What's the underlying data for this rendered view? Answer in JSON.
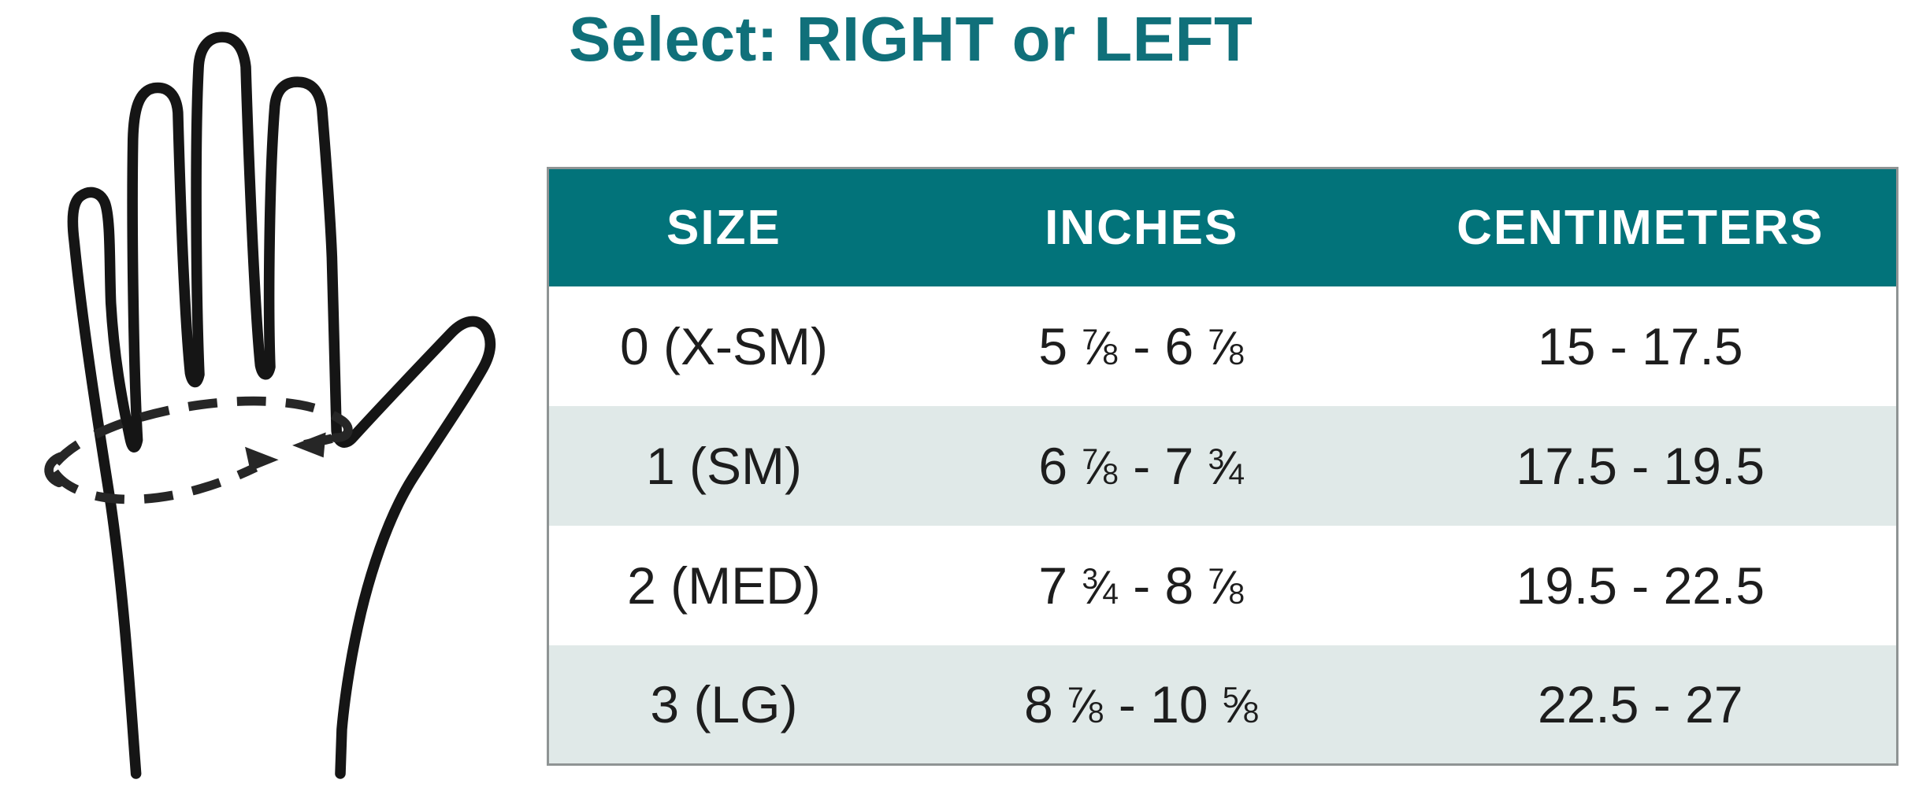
{
  "title": "Select: RIGHT or LEFT",
  "illustration": {
    "label": "hand-measurement-diagram",
    "description": "Black outline drawing of an open hand with a dashed measuring loop around the palm and two arrowheads indicating circumference"
  },
  "chart_data": {
    "type": "table",
    "title": "Select: RIGHT or LEFT",
    "columns": [
      "SIZE",
      "INCHES",
      "CENTIMETERS"
    ],
    "rows": [
      {
        "size": "0 (X-SM)",
        "inches": "5 {7/8} - 6 {7/8}",
        "inches_range": [
          5.875,
          6.875
        ],
        "centimeters": "15 - 17.5",
        "cm_range": [
          15,
          17.5
        ]
      },
      {
        "size": "1 (SM)",
        "inches": "6 {7/8} - 7 {3/4}",
        "inches_range": [
          6.875,
          7.75
        ],
        "centimeters": "17.5 - 19.5",
        "cm_range": [
          17.5,
          19.5
        ]
      },
      {
        "size": "2 (MED)",
        "inches": "7 {3/4} - 8 {7/8}",
        "inches_range": [
          7.75,
          8.875
        ],
        "centimeters": "19.5 - 22.5",
        "cm_range": [
          19.5,
          22.5
        ]
      },
      {
        "size": "3 (LG)",
        "inches": "8 {7/8} - 10 {5/8}",
        "inches_range": [
          8.875,
          10.625
        ],
        "centimeters": "22.5 - 27",
        "cm_range": [
          22.5,
          27
        ]
      }
    ],
    "layout": {
      "header_background": "#02737a",
      "header_text_color": "#ffffff",
      "alt_row_background": "#e0e9e8",
      "body_text_color": "#1d1d1d",
      "border_color": "#8f9494",
      "title_color": "#10707a"
    }
  }
}
